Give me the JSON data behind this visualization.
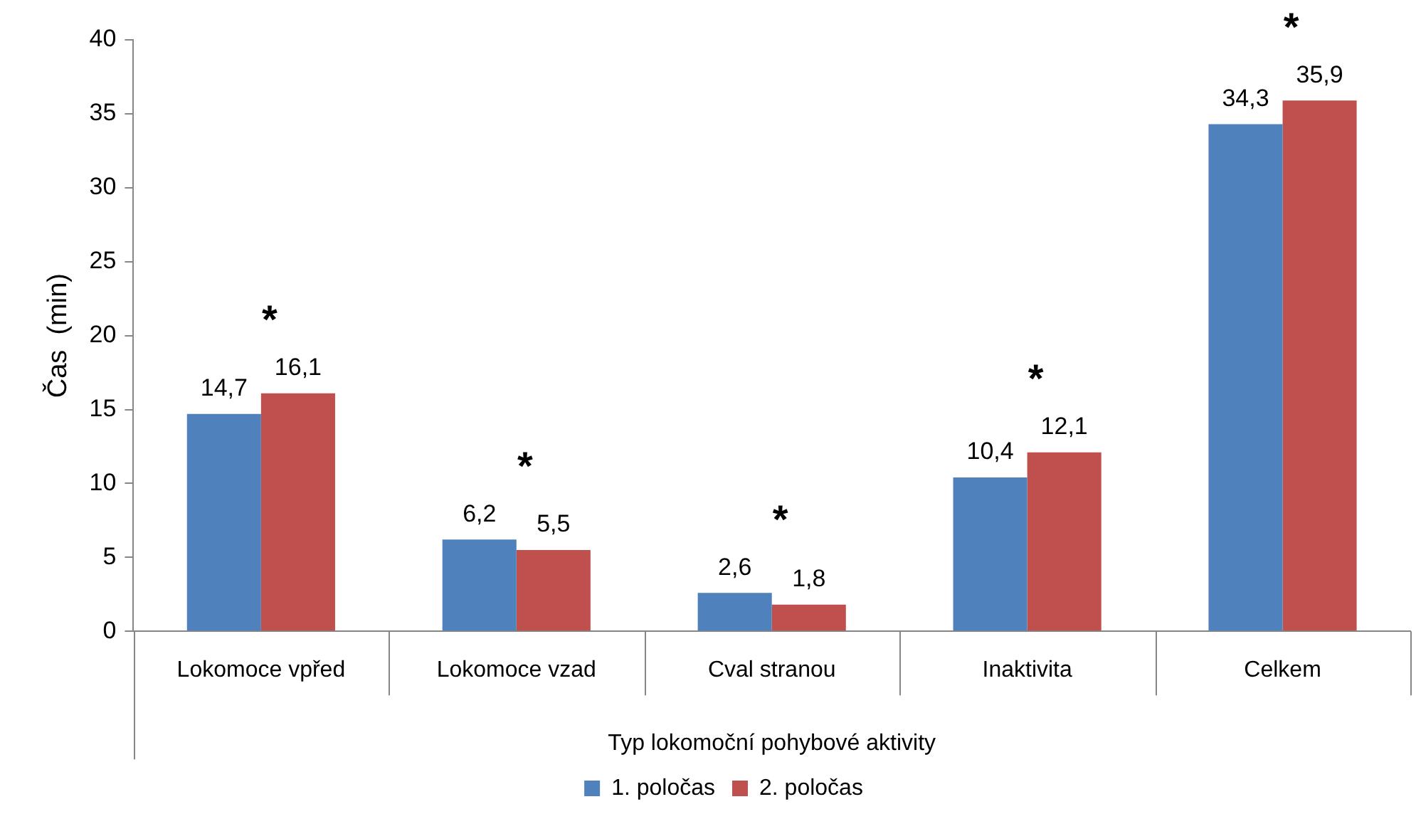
{
  "chart_data": {
    "type": "bar",
    "xlabel": "Typ lokomoční pohybové aktivity",
    "ylabel": "Čas  (min)",
    "categories": [
      "Lokomoce vpřed",
      "Lokomoce vzad",
      "Cval stranou",
      "Inaktivita",
      "Celkem"
    ],
    "series": [
      {
        "name": "1. poločas",
        "color": "#4f81bd",
        "values": [
          14.7,
          6.2,
          2.6,
          10.4,
          34.3
        ],
        "value_labels": [
          "14,7",
          "6,2",
          "2,6",
          "10,4",
          "34,3"
        ]
      },
      {
        "name": "2. poločas",
        "color": "#c0504d",
        "values": [
          16.1,
          5.5,
          1.8,
          12.1,
          35.9
        ],
        "value_labels": [
          "16,1",
          "5,5",
          "1,8",
          "12,1",
          "35,9"
        ]
      }
    ],
    "annotations": [
      "*",
      "*",
      "*",
      "*",
      "*"
    ],
    "ylim": [
      0,
      40
    ],
    "yticks": [
      0,
      5,
      10,
      15,
      20,
      25,
      30,
      35,
      40
    ],
    "grid": false,
    "legend": "bottom"
  }
}
